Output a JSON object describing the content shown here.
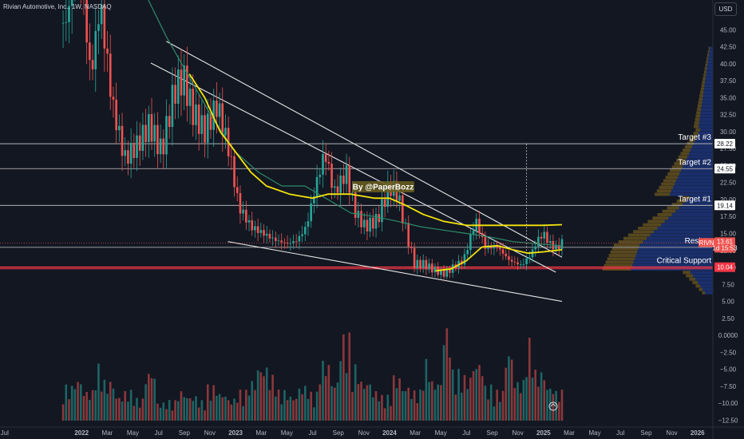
{
  "header": {
    "title": "Rivian Automotive, Inc., 1W, NASDAQ",
    "currency_button": "USD"
  },
  "watermark": "By @PaperBozz",
  "annotations": [
    {
      "id": "target3",
      "label": "Target #3",
      "value": 28.22,
      "tag": "28.22"
    },
    {
      "id": "target2",
      "label": "Target #2",
      "value": 24.55,
      "tag": "24.55"
    },
    {
      "id": "target1",
      "label": "Target #1",
      "value": 19.14,
      "tag": "19.14"
    },
    {
      "id": "resistance",
      "label": "Resista",
      "value": 12.96,
      "tag": "12.96"
    },
    {
      "id": "critical",
      "label": "Critical Support",
      "value": 10.04,
      "tag": "10.04"
    }
  ],
  "current_price": {
    "ticker": "RIVN",
    "price": "13.61",
    "countdown": "1d 15:53",
    "value": 13.61
  },
  "colors": {
    "background": "#131722",
    "up": "#26a69a",
    "down": "#ef5350",
    "ma_yellow": "#f5e50c",
    "ma_green": "#2e8b69",
    "trendline": "#e6e6e6",
    "critical_line": "#f23645",
    "volume_profile": "#1e3a8a",
    "volume_profile_accent": "#d4a017"
  },
  "chart_data": {
    "type": "candlestick",
    "title": "Rivian Automotive, Inc., 1W, NASDAQ",
    "y_axis_ticks": [
      "45.00",
      "42.50",
      "40.00",
      "37.50",
      "35.00",
      "32.50",
      "30.00",
      "27.50",
      "25.00",
      "22.50",
      "20.00",
      "17.50",
      "15.00",
      "12.50",
      "10.00",
      "7.50",
      "5.00",
      "2.50",
      "0.0000",
      "−2.50",
      "−5.00",
      "−7.50",
      "−10.00",
      "−12.50"
    ],
    "y_axis_values": [
      45,
      42.5,
      40,
      37.5,
      35,
      32.5,
      30,
      27.5,
      25,
      22.5,
      20,
      17.5,
      15,
      12.5,
      10,
      7.5,
      5,
      2.5,
      0,
      -2.5,
      -5,
      -7.5,
      -10,
      -12.5
    ],
    "x_axis_ticks": [
      "Jul",
      "2022",
      "Mar",
      "May",
      "Jul",
      "Sep",
      "Nov",
      "2023",
      "Mar",
      "May",
      "Jul",
      "Sep",
      "Nov",
      "2024",
      "Mar",
      "May",
      "Jul",
      "Sep",
      "Nov",
      "2025",
      "Mar",
      "May",
      "Jul",
      "Sep",
      "Nov",
      "2026"
    ],
    "x_axis_dates": [
      2021.5,
      2022.0,
      2022.167,
      2022.333,
      2022.5,
      2022.667,
      2022.833,
      2023.0,
      2023.167,
      2023.333,
      2023.5,
      2023.667,
      2023.833,
      2024.0,
      2024.167,
      2024.333,
      2024.5,
      2024.667,
      2024.833,
      2025.0,
      2025.167,
      2025.333,
      2025.5,
      2025.667,
      2025.833,
      2026.0
    ],
    "ylim": [
      -13.5,
      47.5
    ],
    "xlim": [
      2021.47,
      2026.1
    ],
    "price_path": [
      {
        "t": 2021.9,
        "p": 46
      },
      {
        "t": 2021.98,
        "p": 58
      },
      {
        "t": 2022.02,
        "p": 47
      },
      {
        "t": 2022.06,
        "p": 38
      },
      {
        "t": 2022.12,
        "p": 49
      },
      {
        "t": 2022.2,
        "p": 34
      },
      {
        "t": 2022.28,
        "p": 26
      },
      {
        "t": 2022.36,
        "p": 28
      },
      {
        "t": 2022.44,
        "p": 31
      },
      {
        "t": 2022.52,
        "p": 27
      },
      {
        "t": 2022.6,
        "p": 36
      },
      {
        "t": 2022.66,
        "p": 38
      },
      {
        "t": 2022.72,
        "p": 33
      },
      {
        "t": 2022.8,
        "p": 30
      },
      {
        "t": 2022.88,
        "p": 34
      },
      {
        "t": 2022.96,
        "p": 27
      },
      {
        "t": 2023.02,
        "p": 19
      },
      {
        "t": 2023.1,
        "p": 16
      },
      {
        "t": 2023.18,
        "p": 15
      },
      {
        "t": 2023.26,
        "p": 14
      },
      {
        "t": 2023.34,
        "p": 13.5
      },
      {
        "t": 2023.4,
        "p": 14
      },
      {
        "t": 2023.46,
        "p": 16
      },
      {
        "t": 2023.52,
        "p": 22
      },
      {
        "t": 2023.58,
        "p": 27
      },
      {
        "t": 2023.64,
        "p": 21
      },
      {
        "t": 2023.72,
        "p": 24
      },
      {
        "t": 2023.78,
        "p": 18
      },
      {
        "t": 2023.84,
        "p": 16
      },
      {
        "t": 2023.92,
        "p": 17
      },
      {
        "t": 2024.0,
        "p": 22
      },
      {
        "t": 2024.05,
        "p": 21
      },
      {
        "t": 2024.1,
        "p": 16
      },
      {
        "t": 2024.16,
        "p": 10.5
      },
      {
        "t": 2024.22,
        "p": 10.5
      },
      {
        "t": 2024.3,
        "p": 9.5
      },
      {
        "t": 2024.36,
        "p": 9
      },
      {
        "t": 2024.42,
        "p": 10.2
      },
      {
        "t": 2024.48,
        "p": 11
      },
      {
        "t": 2024.52,
        "p": 14
      },
      {
        "t": 2024.56,
        "p": 17
      },
      {
        "t": 2024.62,
        "p": 13
      },
      {
        "t": 2024.7,
        "p": 13
      },
      {
        "t": 2024.78,
        "p": 11
      },
      {
        "t": 2024.86,
        "p": 10.3
      },
      {
        "t": 2024.92,
        "p": 12
      },
      {
        "t": 2024.96,
        "p": 14
      },
      {
        "t": 2025.0,
        "p": 15
      },
      {
        "t": 2025.04,
        "p": 13.5
      },
      {
        "t": 2025.08,
        "p": 12.8
      },
      {
        "t": 2025.12,
        "p": 13.61
      }
    ],
    "ma_yellow": [
      {
        "t": 2022.7,
        "p": 38.5
      },
      {
        "t": 2022.8,
        "p": 35
      },
      {
        "t": 2022.9,
        "p": 30
      },
      {
        "t": 2023.0,
        "p": 27
      },
      {
        "t": 2023.1,
        "p": 24
      },
      {
        "t": 2023.2,
        "p": 22
      },
      {
        "t": 2023.35,
        "p": 20.8
      },
      {
        "t": 2023.5,
        "p": 20.2
      },
      {
        "t": 2023.6,
        "p": 20.8
      },
      {
        "t": 2023.75,
        "p": 20.8
      },
      {
        "t": 2023.9,
        "p": 20.2
      },
      {
        "t": 2024.0,
        "p": 20.2
      },
      {
        "t": 2024.1,
        "p": 19.2
      },
      {
        "t": 2024.22,
        "p": 17.8
      },
      {
        "t": 2024.35,
        "p": 16.8
      },
      {
        "t": 2024.5,
        "p": 16.2
      },
      {
        "t": 2024.7,
        "p": 16.2
      },
      {
        "t": 2024.85,
        "p": 16.2
      },
      {
        "t": 2025.0,
        "p": 16.2
      },
      {
        "t": 2025.12,
        "p": 16.3
      }
    ],
    "ma_yellow_short": [
      {
        "t": 2024.3,
        "p": 9.5
      },
      {
        "t": 2024.4,
        "p": 9.8
      },
      {
        "t": 2024.5,
        "p": 11
      },
      {
        "t": 2024.6,
        "p": 13
      },
      {
        "t": 2024.7,
        "p": 13.2
      },
      {
        "t": 2024.8,
        "p": 12.6
      },
      {
        "t": 2024.9,
        "p": 12.1
      },
      {
        "t": 2025.0,
        "p": 12.3
      },
      {
        "t": 2025.12,
        "p": 12.6
      }
    ],
    "ma_green": [
      {
        "t": 2022.42,
        "p": 50
      },
      {
        "t": 2022.55,
        "p": 44
      },
      {
        "t": 2022.7,
        "p": 38
      },
      {
        "t": 2022.85,
        "p": 32
      },
      {
        "t": 2023.0,
        "p": 27
      },
      {
        "t": 2023.15,
        "p": 24
      },
      {
        "t": 2023.3,
        "p": 22
      },
      {
        "t": 2023.45,
        "p": 22
      },
      {
        "t": 2023.6,
        "p": 20
      },
      {
        "t": 2023.75,
        "p": 18
      },
      {
        "t": 2023.9,
        "p": 17.5
      },
      {
        "t": 2024.05,
        "p": 16.8
      },
      {
        "t": 2024.2,
        "p": 16
      },
      {
        "t": 2024.35,
        "p": 15.5
      },
      {
        "t": 2024.5,
        "p": 15
      },
      {
        "t": 2024.65,
        "p": 14.5
      },
      {
        "t": 2024.8,
        "p": 13.8
      },
      {
        "t": 2024.95,
        "p": 13.5
      },
      {
        "t": 2025.12,
        "p": 13.2
      }
    ],
    "trendlines": [
      {
        "name": "upper-a",
        "from": {
          "t": 2022.55,
          "p": 43.3
        },
        "to": {
          "t": 2025.12,
          "p": 11.5
        }
      },
      {
        "name": "upper-b",
        "from": {
          "t": 2022.45,
          "p": 40.1
        },
        "to": {
          "t": 2025.08,
          "p": 9.3
        }
      },
      {
        "name": "lower",
        "from": {
          "t": 2022.95,
          "p": 13.8
        },
        "to": {
          "t": 2025.12,
          "p": 5.0
        }
      }
    ],
    "horizontal_levels": [
      28.22,
      24.55,
      19.14,
      12.96,
      10.04
    ],
    "vertical_marker": {
      "t": 2024.89,
      "from": 28.2,
      "to": 10.04
    },
    "volume_relative": [
      0.35,
      0.42,
      0.3,
      0.55,
      0.4,
      0.25,
      0.3,
      0.22,
      0.5,
      0.18,
      0.2,
      0.3,
      0.25,
      0.2,
      0.35,
      0.28,
      0.22,
      0.3,
      0.4,
      0.55,
      0.45,
      0.3,
      0.25,
      0.35,
      0.28,
      0.6,
      0.4,
      0.85,
      0.55,
      0.4,
      0.3,
      0.25,
      0.45,
      0.35,
      0.3,
      0.6,
      0.4,
      0.95,
      0.5,
      0.45,
      0.6,
      0.35,
      0.3,
      0.7,
      0.4,
      0.8,
      0.5,
      0.35,
      0.3
    ]
  }
}
